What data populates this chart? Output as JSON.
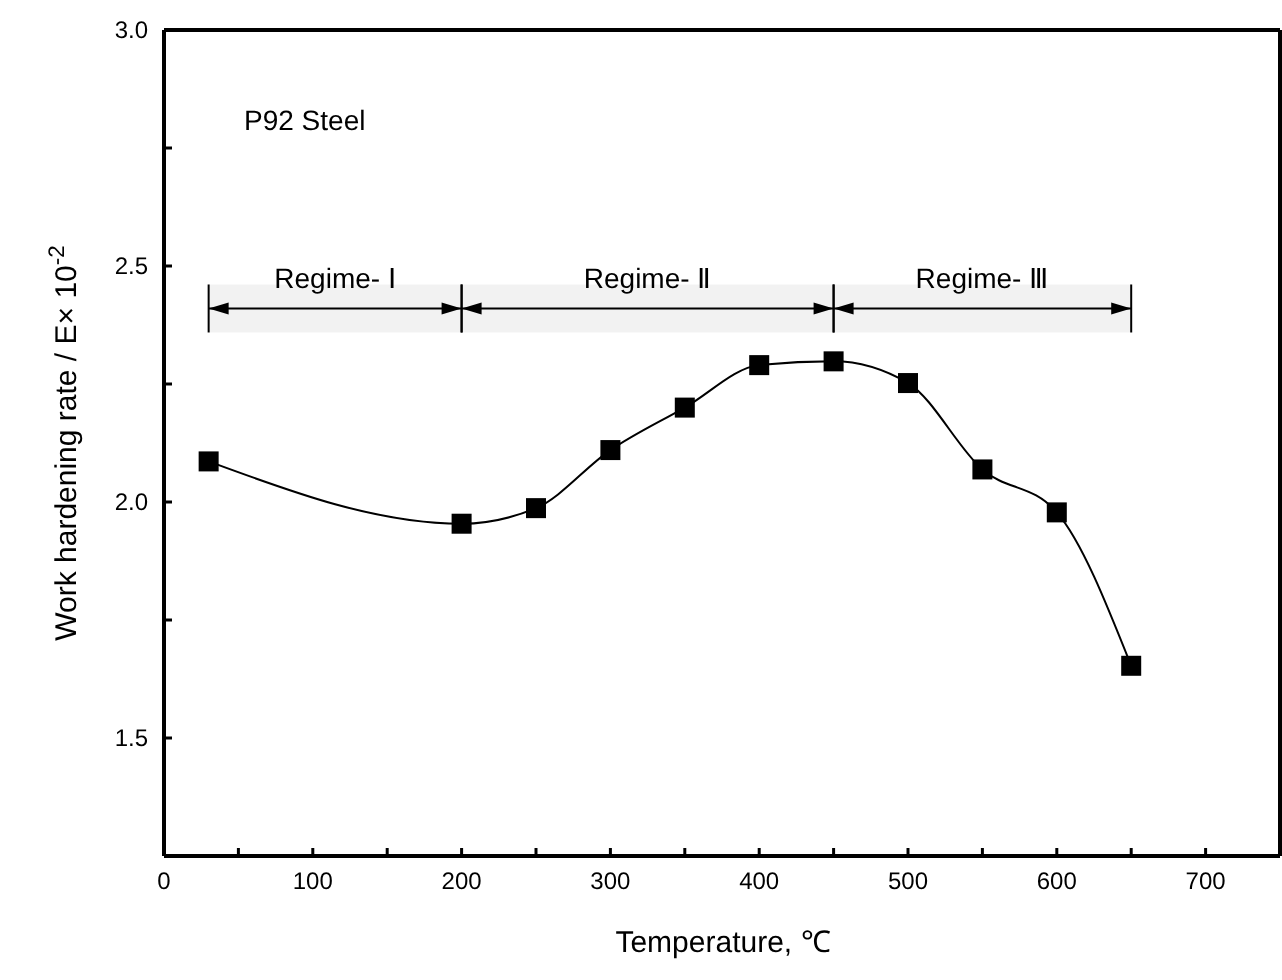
{
  "chart_data": {
    "type": "line",
    "xlabel": "Temperature, ℃",
    "ylabel": "Work hardening rate / E× 10$^{-2}$",
    "x": [
      30,
      200,
      250,
      300,
      350,
      400,
      450,
      500,
      550,
      600,
      650
    ],
    "series": [
      {
        "color": "#000000",
        "values": [
          2.086,
          1.954,
          1.987,
          2.11,
          2.2,
          2.29,
          2.298,
          2.252,
          2.069,
          1.978,
          1.653
        ]
      }
    ],
    "marker": "square",
    "line_style": "solid",
    "grid": false,
    "xlim": [
      0,
      750
    ],
    "ylim": [
      1.25,
      3.0
    ],
    "xticks": [
      0,
      {
        "value": 50,
        "label": null
      },
      100,
      {
        "value": 150,
        "label": null
      },
      200,
      {
        "value": 250,
        "label": null
      },
      300,
      {
        "value": 350,
        "label": null
      },
      400,
      {
        "value": 450,
        "label": null
      },
      500,
      {
        "value": 550,
        "label": null
      },
      600,
      {
        "value": 650,
        "label": null
      },
      700
    ],
    "yticks": [
      {
        "value": 1.25,
        "label": null
      },
      {
        "value": 1.5,
        "label": "1.5"
      },
      {
        "value": 1.75,
        "label": null
      },
      {
        "value": 2.0,
        "label": "2.0"
      },
      {
        "value": 2.25,
        "label": null
      },
      {
        "value": 2.5,
        "label": "2.5"
      },
      {
        "value": 2.75,
        "label": null
      },
      {
        "value": 3.0,
        "label": "3.0"
      }
    ],
    "bands": [
      {
        "axis": "x",
        "from": 30,
        "to": 200,
        "label": "Regime- Ⅰ"
      },
      {
        "axis": "x",
        "from": 200,
        "to": 450,
        "label": "Regime- Ⅱ"
      },
      {
        "axis": "x",
        "from": 450,
        "to": 650,
        "label": "Regime- Ⅲ"
      }
    ],
    "annotations": [
      "P92 Steel"
    ]
  }
}
